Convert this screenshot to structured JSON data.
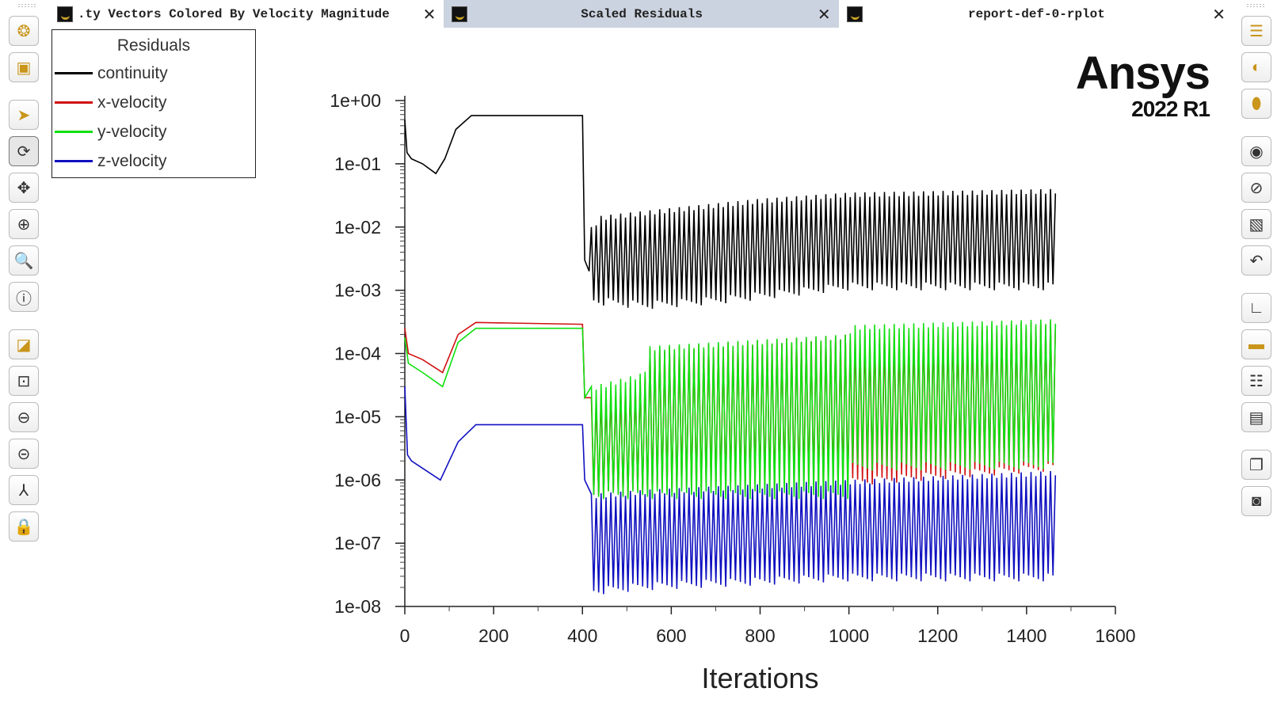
{
  "tabs": [
    {
      "label": ".ty Vectors Colored By Velocity Magnitude",
      "active": false
    },
    {
      "label": "Scaled Residuals",
      "active": true
    },
    {
      "label": "report-def-0-rplot",
      "active": false
    }
  ],
  "close_glyph": "✕",
  "logo": {
    "name": "Ansys",
    "version": "2022 R1"
  },
  "left_toolbar": [
    {
      "icon": "mesh-sphere-icon",
      "glyph": "❂"
    },
    {
      "icon": "model-box-icon",
      "glyph": "▣"
    },
    {
      "icon": "pointer-icon",
      "glyph": "➤"
    },
    {
      "icon": "rotate-icon",
      "glyph": "⟳"
    },
    {
      "icon": "pan-icon",
      "glyph": "✥"
    },
    {
      "icon": "zoom-in-out-icon",
      "glyph": "⊕"
    },
    {
      "icon": "zoom-box-icon",
      "glyph": "🔍"
    },
    {
      "icon": "probe-info-icon",
      "glyph": "ⓘ"
    },
    {
      "icon": "fit-to-window-icon",
      "glyph": "◪"
    },
    {
      "icon": "zoom-to-fit-icon",
      "glyph": "⊡"
    },
    {
      "icon": "zoom-out-icon",
      "glyph": "⊖"
    },
    {
      "icon": "zoom-previous-icon",
      "glyph": "⊝"
    },
    {
      "icon": "axes-icon",
      "glyph": "⅄"
    },
    {
      "icon": "lock-view-icon",
      "glyph": "🔒"
    }
  ],
  "right_toolbar": [
    {
      "icon": "layers-icon",
      "glyph": "☰"
    },
    {
      "icon": "shaded-surface-icon",
      "glyph": "◐"
    },
    {
      "icon": "mesh-surface-icon",
      "glyph": "⬮"
    },
    {
      "icon": "show-eye-icon",
      "glyph": "◉"
    },
    {
      "icon": "hide-eye-icon",
      "glyph": "⊘"
    },
    {
      "icon": "window-icon",
      "glyph": "▧"
    },
    {
      "icon": "undo-view-icon",
      "glyph": "↶"
    },
    {
      "icon": "chart-axes-icon",
      "glyph": "∟"
    },
    {
      "icon": "colormap-icon",
      "glyph": "▬"
    },
    {
      "icon": "annotation-icon",
      "glyph": "☷"
    },
    {
      "icon": "legend-icon",
      "glyph": "▤"
    },
    {
      "icon": "copy-icon",
      "glyph": "❐"
    },
    {
      "icon": "snapshot-icon",
      "glyph": "◙"
    }
  ],
  "chart_data": {
    "type": "line",
    "title": "Scaled Residuals",
    "legend_title": "Residuals",
    "legend_position": "top-left",
    "xlabel": "Iterations",
    "xlim": [
      0,
      1600
    ],
    "xticks": [
      0,
      200,
      400,
      600,
      800,
      1000,
      1200,
      1400,
      1600
    ],
    "ylim": [
      1e-08,
      1
    ],
    "yscale": "log",
    "yticks": [
      "1e+00",
      "1e-01",
      "1e-02",
      "1e-03",
      "1e-04",
      "1e-05",
      "1e-06",
      "1e-07",
      "1e-08"
    ],
    "oscillation_period": 11,
    "series": [
      {
        "name": "continuity",
        "color": "#000000",
        "initial": [
          [
            0,
            0.5
          ],
          [
            5,
            0.15
          ],
          [
            15,
            0.12
          ],
          [
            40,
            0.1
          ],
          [
            70,
            0.07
          ],
          [
            90,
            0.12
          ],
          [
            115,
            0.35
          ],
          [
            150,
            0.58
          ],
          [
            400,
            0.58
          ],
          [
            405,
            0.003
          ],
          [
            415,
            0.002
          ]
        ],
        "upper": [
          [
            420,
            0.01
          ],
          [
            440,
            0.015
          ],
          [
            600,
            0.02
          ],
          [
            800,
            0.028
          ],
          [
            1000,
            0.035
          ],
          [
            1470,
            0.04
          ]
        ],
        "lower": [
          [
            420,
            0.0006
          ],
          [
            540,
            0.0005
          ],
          [
            700,
            0.0006
          ],
          [
            1000,
            0.001
          ],
          [
            1470,
            0.001
          ]
        ]
      },
      {
        "name": "x-velocity",
        "color": "#d01010",
        "initial": [
          [
            0,
            0.00025
          ],
          [
            8,
            0.0001
          ],
          [
            40,
            8e-05
          ],
          [
            85,
            5e-05
          ],
          [
            120,
            0.0002
          ],
          [
            160,
            0.00031
          ],
          [
            400,
            0.00029
          ],
          [
            405,
            2e-05
          ]
        ],
        "upper": [
          [
            420,
            2e-05
          ],
          [
            540,
            4e-05
          ],
          [
            545,
            0.00012
          ],
          [
            1000,
            0.0002
          ],
          [
            1470,
            0.00033
          ]
        ],
        "lower": [
          [
            420,
            5e-07
          ],
          [
            1000,
            8e-07
          ],
          [
            1470,
            1.4e-06
          ]
        ]
      },
      {
        "name": "y-velocity",
        "color": "#10e010",
        "initial": [
          [
            0,
            0.00018
          ],
          [
            8,
            7e-05
          ],
          [
            40,
            5e-05
          ],
          [
            85,
            3e-05
          ],
          [
            120,
            0.00015
          ],
          [
            160,
            0.00025
          ],
          [
            400,
            0.00025
          ],
          [
            405,
            2e-05
          ]
        ],
        "upper": [
          [
            420,
            3e-05
          ],
          [
            540,
            5e-05
          ],
          [
            545,
            0.00013
          ],
          [
            1000,
            0.0002
          ],
          [
            1005,
            0.00028
          ],
          [
            1470,
            0.00035
          ]
        ],
        "lower": [
          [
            420,
            5e-07
          ],
          [
            1000,
            5e-07
          ],
          [
            1005,
            1.4e-06
          ],
          [
            1470,
            1.5e-06
          ]
        ]
      },
      {
        "name": "z-velocity",
        "color": "#1010c0",
        "initial": [
          [
            0,
            3e-05
          ],
          [
            6,
            2.5e-06
          ],
          [
            15,
            2e-06
          ],
          [
            80,
            1e-06
          ],
          [
            120,
            4e-06
          ],
          [
            160,
            7.5e-06
          ],
          [
            400,
            7.5e-06
          ],
          [
            405,
            1e-06
          ]
        ],
        "upper": [
          [
            420,
            6e-07
          ],
          [
            540,
            7e-07
          ],
          [
            1000,
            1e-06
          ],
          [
            1470,
            1.4e-06
          ]
        ],
        "lower": [
          [
            420,
            1.5e-08
          ],
          [
            540,
            1.8e-08
          ],
          [
            1000,
            2.5e-08
          ],
          [
            1470,
            2.5e-08
          ]
        ]
      }
    ]
  }
}
